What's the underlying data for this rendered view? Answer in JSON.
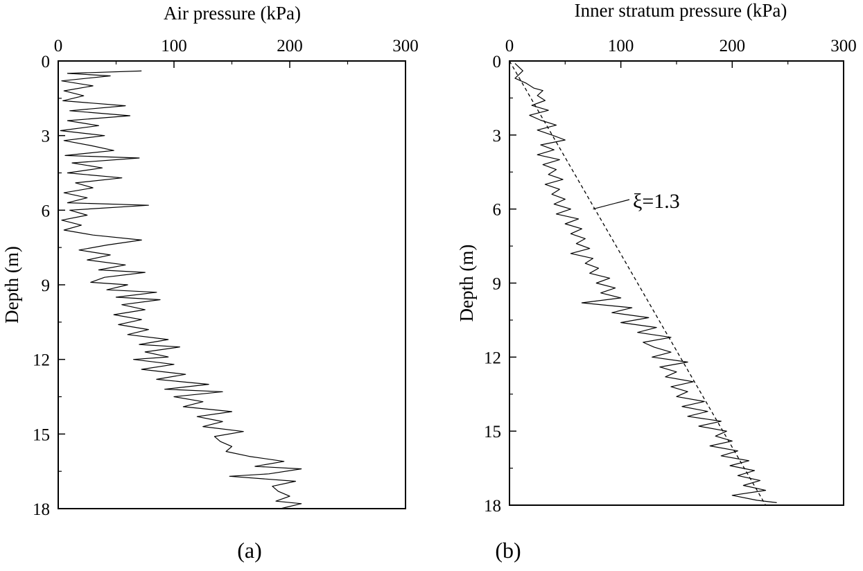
{
  "chart_data": [
    {
      "type": "line",
      "panel_label": "(a)",
      "xlabel": "Air pressure (kPa)",
      "ylabel": "Depth (m)",
      "xlim": [
        0,
        300
      ],
      "ylim": [
        0,
        18
      ],
      "x_ticks": [
        "0",
        "100",
        "200",
        "300"
      ],
      "y_ticks": [
        "0",
        "3",
        "6",
        "9",
        "12",
        "15",
        "18"
      ],
      "y_inverted": true,
      "x_axis_position": "top",
      "series": [
        {
          "style": "solid",
          "points": [
            [
              72,
              0.4
            ],
            [
              8,
              0.5
            ],
            [
              45,
              0.6
            ],
            [
              3,
              0.8
            ],
            [
              30,
              1.0
            ],
            [
              5,
              1.2
            ],
            [
              22,
              1.4
            ],
            [
              4,
              1.6
            ],
            [
              58,
              1.8
            ],
            [
              10,
              2.0
            ],
            [
              62,
              2.2
            ],
            [
              8,
              2.4
            ],
            [
              35,
              2.6
            ],
            [
              2,
              2.8
            ],
            [
              40,
              3.0
            ],
            [
              5,
              3.2
            ],
            [
              28,
              3.4
            ],
            [
              48,
              3.6
            ],
            [
              6,
              3.8
            ],
            [
              70,
              3.9
            ],
            [
              12,
              4.1
            ],
            [
              38,
              4.3
            ],
            [
              8,
              4.5
            ],
            [
              55,
              4.7
            ],
            [
              15,
              4.9
            ],
            [
              30,
              5.1
            ],
            [
              5,
              5.3
            ],
            [
              25,
              5.5
            ],
            [
              8,
              5.7
            ],
            [
              78,
              5.8
            ],
            [
              10,
              6.0
            ],
            [
              25,
              6.2
            ],
            [
              3,
              6.4
            ],
            [
              20,
              6.6
            ],
            [
              5,
              6.8
            ],
            [
              30,
              7.0
            ],
            [
              72,
              7.2
            ],
            [
              42,
              7.4
            ],
            [
              18,
              7.6
            ],
            [
              45,
              7.8
            ],
            [
              25,
              8.0
            ],
            [
              58,
              8.2
            ],
            [
              35,
              8.4
            ],
            [
              75,
              8.5
            ],
            [
              40,
              8.7
            ],
            [
              28,
              8.9
            ],
            [
              60,
              9.0
            ],
            [
              42,
              9.2
            ],
            [
              85,
              9.3
            ],
            [
              50,
              9.5
            ],
            [
              88,
              9.6
            ],
            [
              55,
              9.8
            ],
            [
              75,
              10.0
            ],
            [
              48,
              10.2
            ],
            [
              72,
              10.4
            ],
            [
              52,
              10.6
            ],
            [
              78,
              10.8
            ],
            [
              60,
              11.0
            ],
            [
              95,
              11.2
            ],
            [
              70,
              11.4
            ],
            [
              105,
              11.5
            ],
            [
              75,
              11.7
            ],
            [
              95,
              11.9
            ],
            [
              65,
              12.0
            ],
            [
              100,
              12.2
            ],
            [
              72,
              12.4
            ],
            [
              110,
              12.6
            ],
            [
              85,
              12.8
            ],
            [
              130,
              13.0
            ],
            [
              92,
              13.2
            ],
            [
              142,
              13.3
            ],
            [
              100,
              13.5
            ],
            [
              125,
              13.7
            ],
            [
              108,
              13.9
            ],
            [
              150,
              14.1
            ],
            [
              120,
              14.3
            ],
            [
              142,
              14.5
            ],
            [
              125,
              14.7
            ],
            [
              160,
              14.9
            ],
            [
              135,
              15.1
            ],
            [
              140,
              15.3
            ],
            [
              150,
              15.5
            ],
            [
              145,
              15.7
            ],
            [
              165,
              15.9
            ],
            [
              195,
              16.1
            ],
            [
              170,
              16.3
            ],
            [
              210,
              16.4
            ],
            [
              182,
              16.6
            ],
            [
              148,
              16.7
            ],
            [
              205,
              16.9
            ],
            [
              185,
              17.1
            ],
            [
              190,
              17.3
            ],
            [
              200,
              17.5
            ],
            [
              188,
              17.7
            ],
            [
              210,
              17.8
            ],
            [
              192,
              18.0
            ]
          ]
        }
      ]
    },
    {
      "type": "line",
      "panel_label": "(b)",
      "xlabel": "Inner stratum pressure (kPa)",
      "ylabel": "Depth (m)",
      "xlim": [
        0,
        300
      ],
      "ylim": [
        0,
        18
      ],
      "x_ticks": [
        "0",
        "100",
        "200",
        "300"
      ],
      "y_ticks": [
        "0",
        "3",
        "6",
        "9",
        "12",
        "15",
        "18"
      ],
      "y_inverted": true,
      "x_axis_position": "top",
      "annotation": "ξ=1.3",
      "series": [
        {
          "style": "solid",
          "points": [
            [
              5,
              0.1
            ],
            [
              12,
              0.4
            ],
            [
              5,
              0.7
            ],
            [
              15,
              0.9
            ],
            [
              22,
              1.1
            ],
            [
              30,
              1.2
            ],
            [
              25,
              1.4
            ],
            [
              32,
              1.6
            ],
            [
              20,
              1.8
            ],
            [
              35,
              2.0
            ],
            [
              18,
              2.2
            ],
            [
              28,
              2.4
            ],
            [
              42,
              2.6
            ],
            [
              25,
              2.8
            ],
            [
              38,
              3.0
            ],
            [
              50,
              3.2
            ],
            [
              28,
              3.4
            ],
            [
              40,
              3.6
            ],
            [
              25,
              3.8
            ],
            [
              45,
              4.0
            ],
            [
              30,
              4.2
            ],
            [
              42,
              4.4
            ],
            [
              35,
              4.6
            ],
            [
              48,
              4.8
            ],
            [
              32,
              5.0
            ],
            [
              45,
              5.2
            ],
            [
              38,
              5.4
            ],
            [
              50,
              5.6
            ],
            [
              40,
              5.8
            ],
            [
              55,
              6.0
            ],
            [
              42,
              6.2
            ],
            [
              62,
              6.4
            ],
            [
              50,
              6.6
            ],
            [
              65,
              6.8
            ],
            [
              55,
              7.0
            ],
            [
              68,
              7.2
            ],
            [
              60,
              7.4
            ],
            [
              72,
              7.6
            ],
            [
              55,
              7.8
            ],
            [
              75,
              8.0
            ],
            [
              68,
              8.2
            ],
            [
              80,
              8.4
            ],
            [
              72,
              8.6
            ],
            [
              90,
              8.8
            ],
            [
              78,
              9.0
            ],
            [
              95,
              9.2
            ],
            [
              82,
              9.4
            ],
            [
              100,
              9.6
            ],
            [
              65,
              9.8
            ],
            [
              110,
              10.0
            ],
            [
              92,
              10.2
            ],
            [
              125,
              10.4
            ],
            [
              100,
              10.6
            ],
            [
              132,
              10.8
            ],
            [
              115,
              11.0
            ],
            [
              145,
              11.2
            ],
            [
              120,
              11.4
            ],
            [
              130,
              11.6
            ],
            [
              145,
              11.8
            ],
            [
              128,
              12.0
            ],
            [
              160,
              12.2
            ],
            [
              135,
              12.4
            ],
            [
              150,
              12.6
            ],
            [
              140,
              12.8
            ],
            [
              165,
              13.0
            ],
            [
              145,
              13.2
            ],
            [
              160,
              13.4
            ],
            [
              150,
              13.6
            ],
            [
              175,
              13.8
            ],
            [
              155,
              14.0
            ],
            [
              178,
              14.2
            ],
            [
              160,
              14.4
            ],
            [
              190,
              14.6
            ],
            [
              170,
              14.8
            ],
            [
              195,
              15.0
            ],
            [
              185,
              15.2
            ],
            [
              200,
              15.4
            ],
            [
              180,
              15.6
            ],
            [
              205,
              15.8
            ],
            [
              190,
              16.0
            ],
            [
              215,
              16.2
            ],
            [
              198,
              16.4
            ],
            [
              220,
              16.6
            ],
            [
              205,
              16.8
            ],
            [
              225,
              17.0
            ],
            [
              210,
              17.2
            ],
            [
              230,
              17.4
            ],
            [
              200,
              17.6
            ],
            [
              222,
              17.8
            ],
            [
              240,
              17.9
            ]
          ]
        },
        {
          "style": "dashed",
          "points": [
            [
              0,
              0
            ],
            [
              230,
              18
            ]
          ]
        }
      ]
    }
  ]
}
